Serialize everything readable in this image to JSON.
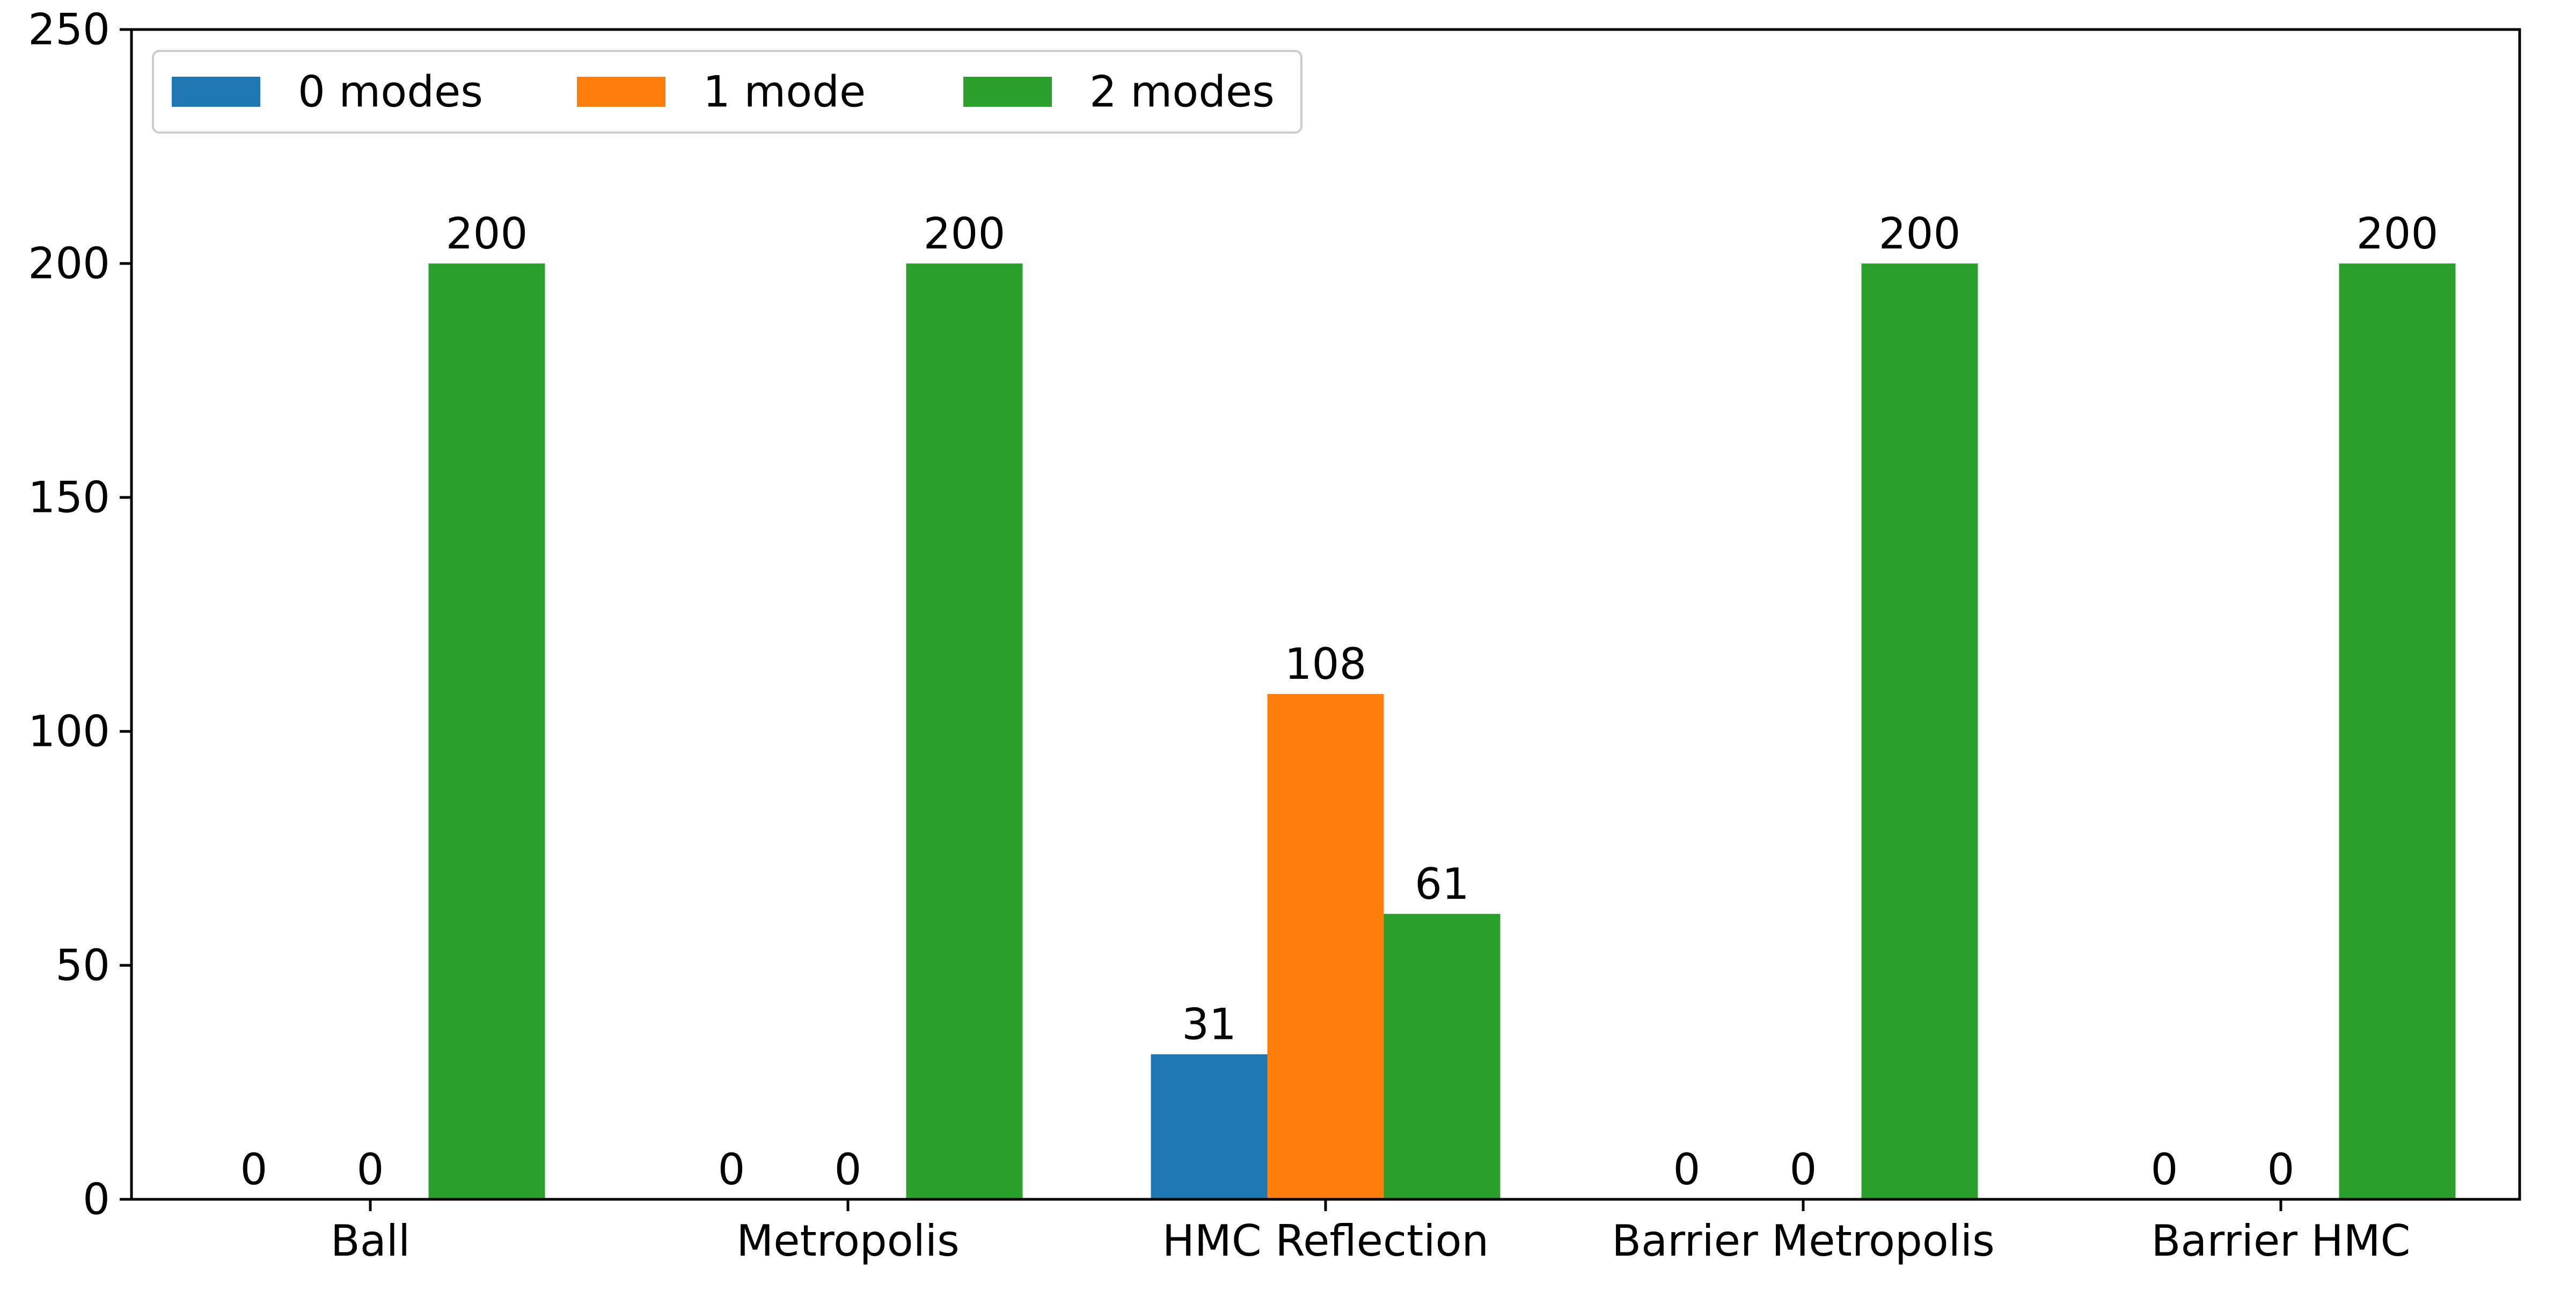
{
  "chart_data": {
    "type": "bar",
    "title": "",
    "xlabel": "",
    "ylabel": "",
    "categories": [
      "Ball",
      "Metropolis",
      "HMC Reflection",
      "Barrier Metropolis",
      "Barrier HMC"
    ],
    "series": [
      {
        "name": "0 modes",
        "color": "#1f77b4",
        "values": [
          0,
          0,
          31,
          0,
          0
        ]
      },
      {
        "name": "1 mode",
        "color": "#ff7f0e",
        "values": [
          0,
          0,
          108,
          0,
          0
        ]
      },
      {
        "name": "2 modes",
        "color": "#2ca02c",
        "values": [
          200,
          200,
          61,
          200,
          200
        ]
      }
    ],
    "ylim": [
      0,
      250
    ],
    "yticks": [
      0,
      50,
      100,
      150,
      200,
      250
    ],
    "grid": false,
    "legend_position": "top-left",
    "legend_layout": "horizontal",
    "data_labels": true
  }
}
